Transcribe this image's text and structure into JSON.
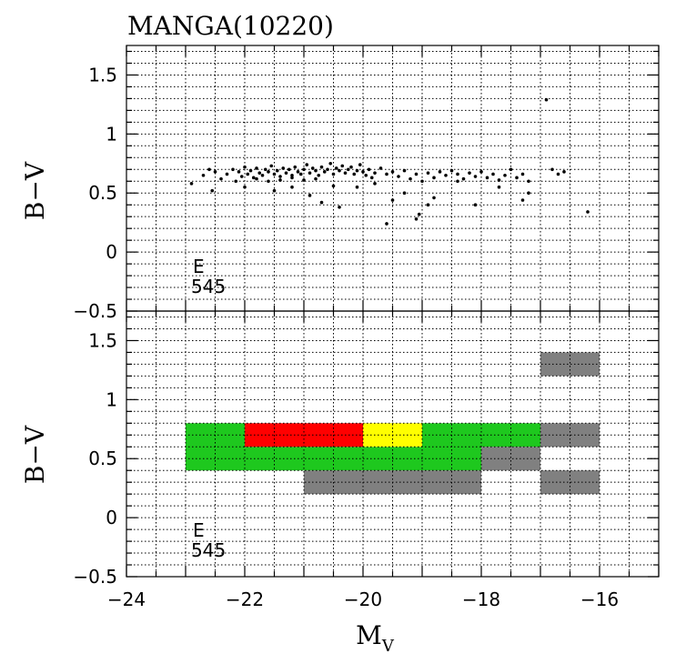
{
  "chart_data": [
    {
      "type": "scatter",
      "title": "MANGA(10220)",
      "xlabel": "",
      "ylabel": "B−V",
      "xlim": [
        -24,
        -15
      ],
      "ylim": [
        -0.5,
        1.75
      ],
      "x_ticks": [
        -24,
        -22,
        -20,
        -18,
        -16
      ],
      "y_ticks": [
        -0.5,
        0,
        0.5,
        1,
        1.5
      ],
      "y_tick_labels": [
        "−0.5",
        "0",
        "0.5",
        "1",
        "1.5"
      ],
      "grid": true,
      "annotation": {
        "type_label": "E",
        "count": "545"
      },
      "points": [
        [
          -22.9,
          0.58
        ],
        [
          -22.7,
          0.65
        ],
        [
          -22.6,
          0.7
        ],
        [
          -22.55,
          0.52
        ],
        [
          -22.5,
          0.68
        ],
        [
          -22.4,
          0.62
        ],
        [
          -22.3,
          0.66
        ],
        [
          -22.2,
          0.7
        ],
        [
          -22.15,
          0.6
        ],
        [
          -22.1,
          0.68
        ],
        [
          -22.05,
          0.64
        ],
        [
          -22.0,
          0.72
        ],
        [
          -21.95,
          0.66
        ],
        [
          -21.9,
          0.69
        ],
        [
          -21.85,
          0.63
        ],
        [
          -21.8,
          0.71
        ],
        [
          -21.75,
          0.67
        ],
        [
          -21.7,
          0.65
        ],
        [
          -21.65,
          0.7
        ],
        [
          -21.6,
          0.68
        ],
        [
          -21.55,
          0.73
        ],
        [
          -21.5,
          0.66
        ],
        [
          -21.45,
          0.69
        ],
        [
          -21.4,
          0.64
        ],
        [
          -21.35,
          0.71
        ],
        [
          -21.3,
          0.67
        ],
        [
          -21.25,
          0.7
        ],
        [
          -21.2,
          0.65
        ],
        [
          -21.15,
          0.72
        ],
        [
          -21.1,
          0.68
        ],
        [
          -21.05,
          0.66
        ],
        [
          -21.0,
          0.7
        ],
        [
          -20.95,
          0.74
        ],
        [
          -20.9,
          0.67
        ],
        [
          -20.85,
          0.71
        ],
        [
          -20.8,
          0.69
        ],
        [
          -20.75,
          0.65
        ],
        [
          -20.7,
          0.72
        ],
        [
          -20.65,
          0.68
        ],
        [
          -20.6,
          0.7
        ],
        [
          -20.55,
          0.75
        ],
        [
          -20.5,
          0.66
        ],
        [
          -20.45,
          0.71
        ],
        [
          -20.4,
          0.69
        ],
        [
          -20.35,
          0.73
        ],
        [
          -20.3,
          0.67
        ],
        [
          -20.25,
          0.7
        ],
        [
          -20.2,
          0.72
        ],
        [
          -20.15,
          0.66
        ],
        [
          -20.1,
          0.69
        ],
        [
          -20.05,
          0.74
        ],
        [
          -20.0,
          0.68
        ],
        [
          -19.95,
          0.65
        ],
        [
          -19.9,
          0.7
        ],
        [
          -19.85,
          0.63
        ],
        [
          -19.8,
          0.67
        ],
        [
          -19.7,
          0.71
        ],
        [
          -19.6,
          0.66
        ],
        [
          -19.5,
          0.68
        ],
        [
          -19.4,
          0.64
        ],
        [
          -19.3,
          0.69
        ],
        [
          -19.2,
          0.62
        ],
        [
          -19.1,
          0.66
        ],
        [
          -19.0,
          0.6
        ],
        [
          -18.9,
          0.67
        ],
        [
          -18.8,
          0.63
        ],
        [
          -18.7,
          0.68
        ],
        [
          -18.6,
          0.65
        ],
        [
          -18.5,
          0.69
        ],
        [
          -18.4,
          0.66
        ],
        [
          -18.3,
          0.62
        ],
        [
          -18.2,
          0.67
        ],
        [
          -18.1,
          0.64
        ],
        [
          -18.0,
          0.68
        ],
        [
          -17.9,
          0.63
        ],
        [
          -17.8,
          0.66
        ],
        [
          -17.7,
          0.61
        ],
        [
          -17.6,
          0.65
        ],
        [
          -17.5,
          0.7
        ],
        [
          -17.4,
          0.63
        ],
        [
          -17.3,
          0.66
        ],
        [
          -17.2,
          0.6
        ],
        [
          -21.8,
          0.62
        ],
        [
          -21.6,
          0.6
        ],
        [
          -21.4,
          0.61
        ],
        [
          -21.2,
          0.63
        ],
        [
          -21.0,
          0.61
        ],
        [
          -20.8,
          0.62
        ],
        [
          -22.0,
          0.55
        ],
        [
          -21.5,
          0.52
        ],
        [
          -21.2,
          0.55
        ],
        [
          -20.9,
          0.48
        ],
        [
          -20.7,
          0.42
        ],
        [
          -20.5,
          0.56
        ],
        [
          -20.4,
          0.38
        ],
        [
          -20.1,
          0.55
        ],
        [
          -19.8,
          0.58
        ],
        [
          -19.6,
          0.24
        ],
        [
          -19.5,
          0.44
        ],
        [
          -19.3,
          0.5
        ],
        [
          -19.1,
          0.28
        ],
        [
          -19.05,
          0.32
        ],
        [
          -18.9,
          0.4
        ],
        [
          -18.8,
          0.46
        ],
        [
          -18.4,
          0.6
        ],
        [
          -18.1,
          0.4
        ],
        [
          -17.7,
          0.55
        ],
        [
          -17.3,
          0.44
        ],
        [
          -17.2,
          0.5
        ],
        [
          -16.9,
          1.29
        ],
        [
          -16.8,
          0.7
        ],
        [
          -16.7,
          0.66
        ],
        [
          -16.6,
          0.68
        ],
        [
          -16.2,
          0.34
        ]
      ]
    },
    {
      "type": "heatmap",
      "title": "",
      "xlabel": "M_V",
      "xlabel_main": "M",
      "xlabel_sub": "V",
      "ylabel": "B−V",
      "xlim": [
        -24,
        -15
      ],
      "ylim": [
        -0.5,
        1.75
      ],
      "x_ticks": [
        -24,
        -22,
        -20,
        -18,
        -16
      ],
      "x_tick_labels": [
        "−24",
        "−22",
        "−20",
        "−18",
        "−16"
      ],
      "y_ticks": [
        -0.5,
        0,
        0.5,
        1,
        1.5
      ],
      "y_tick_labels": [
        "−0.5",
        "0",
        "0.5",
        "1",
        "1.5"
      ],
      "grid": true,
      "annotation": {
        "type_label": "E",
        "count": "545"
      },
      "colors": {
        "green": "#1ec81e",
        "red": "#ff0000",
        "yellow": "#ffff00",
        "gray": "#808080"
      },
      "cells": [
        {
          "x0": -23,
          "x1": -22,
          "y0": 0.4,
          "y1": 0.8,
          "color": "green"
        },
        {
          "x0": -22,
          "x1": -20,
          "y0": 0.4,
          "y1": 0.6,
          "color": "green"
        },
        {
          "x0": -22,
          "x1": -20,
          "y0": 0.6,
          "y1": 0.8,
          "color": "red"
        },
        {
          "x0": -20,
          "x1": -19,
          "y0": 0.4,
          "y1": 0.6,
          "color": "green"
        },
        {
          "x0": -20,
          "x1": -19,
          "y0": 0.6,
          "y1": 0.8,
          "color": "yellow"
        },
        {
          "x0": -19,
          "x1": -18,
          "y0": 0.4,
          "y1": 0.8,
          "color": "green"
        },
        {
          "x0": -18,
          "x1": -17,
          "y0": 0.6,
          "y1": 0.8,
          "color": "green"
        },
        {
          "x0": -18,
          "x1": -17,
          "y0": 0.4,
          "y1": 0.6,
          "color": "gray"
        },
        {
          "x0": -21,
          "x1": -18,
          "y0": 0.2,
          "y1": 0.4,
          "color": "gray"
        },
        {
          "x0": -17,
          "x1": -16,
          "y0": 1.2,
          "y1": 1.4,
          "color": "gray"
        },
        {
          "x0": -17,
          "x1": -16,
          "y0": 0.6,
          "y1": 0.8,
          "color": "gray"
        },
        {
          "x0": -17,
          "x1": -16,
          "y0": 0.2,
          "y1": 0.4,
          "color": "gray"
        }
      ]
    }
  ]
}
